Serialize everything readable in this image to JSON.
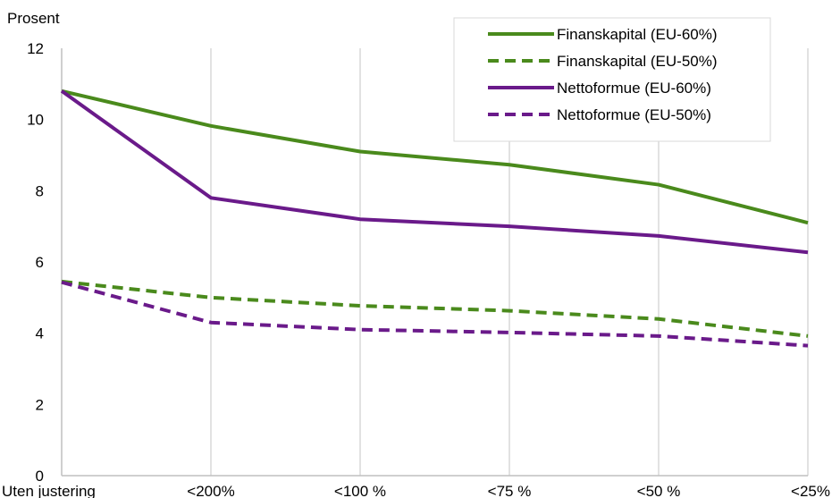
{
  "chart_data": {
    "type": "line",
    "ylabel": "Prosent",
    "xlabel": "",
    "categories": [
      "Uten justering",
      "<200%",
      "<100 %",
      "<75 %",
      "<50 %",
      "<25%"
    ],
    "ylim": [
      0,
      12
    ],
    "yticks": [
      0,
      2,
      4,
      6,
      8,
      10,
      12
    ],
    "grid": "vertical",
    "legend_position": "top-right",
    "series": [
      {
        "name": "Finanskapital (EU-60%)",
        "color": "#4a8a1c",
        "dash": "solid",
        "values": [
          10.8,
          9.82,
          9.1,
          8.73,
          8.17,
          7.1
        ]
      },
      {
        "name": "Finanskapital (EU-50%)",
        "color": "#4a8a1c",
        "dash": "dashed",
        "values": [
          5.45,
          5.0,
          4.77,
          4.63,
          4.4,
          3.92
        ]
      },
      {
        "name": "Nettoformue (EU-60%)",
        "color": "#6a1a8a",
        "dash": "solid",
        "values": [
          10.8,
          7.8,
          7.2,
          7.0,
          6.73,
          6.27
        ]
      },
      {
        "name": "Nettoformue (EU-50%)",
        "color": "#6a1a8a",
        "dash": "dashed",
        "values": [
          5.43,
          4.3,
          4.1,
          4.02,
          3.92,
          3.65
        ]
      }
    ]
  }
}
